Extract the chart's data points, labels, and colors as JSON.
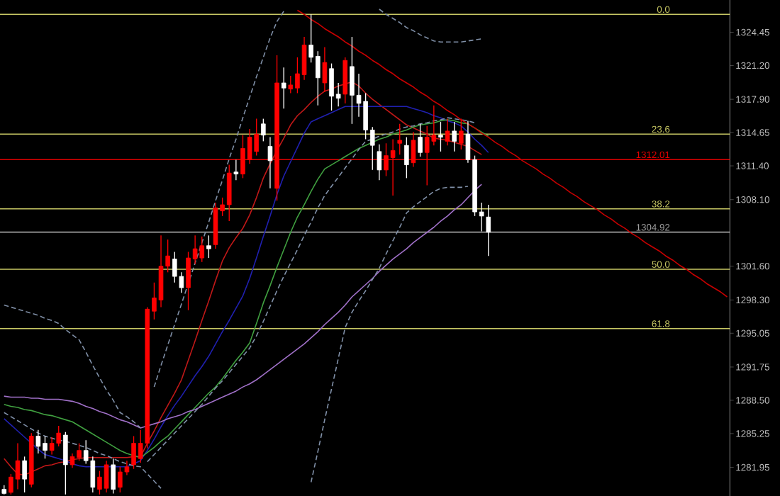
{
  "chart_data": {
    "type": "candlestick",
    "categories": [
      null,
      null,
      null,
      null,
      null,
      null,
      null,
      null,
      null,
      null,
      null,
      null,
      null,
      null,
      null,
      null,
      null,
      null,
      null,
      null,
      null,
      null,
      null,
      null,
      null,
      null,
      null,
      null,
      null,
      null,
      null,
      null,
      null,
      null,
      null,
      null,
      null,
      null,
      null,
      null,
      null,
      null,
      null,
      null,
      null,
      null,
      null,
      null,
      null,
      null,
      null,
      null,
      null,
      null,
      null,
      null,
      null,
      null,
      null,
      null,
      null,
      null,
      null,
      null,
      null,
      null,
      null,
      null,
      null,
      null,
      null,
      null,
      null,
      null,
      null,
      null,
      null,
      null,
      null,
      null,
      null,
      null,
      null,
      null,
      null,
      null,
      null,
      null,
      null,
      null,
      null,
      null,
      null,
      null,
      null,
      null,
      null,
      null,
      null,
      null,
      null,
      null,
      null,
      null,
      null,
      null,
      null
    ],
    "ohlc": [
      [
        1279.8,
        1280.2,
        1279.3,
        1279.4
      ],
      [
        1279.5,
        1281.3,
        1279.3,
        1281.0
      ],
      [
        1280.8,
        1284.3,
        1279.8,
        1282.6
      ],
      [
        1282.6,
        1283.0,
        1279.5,
        1280.8
      ],
      [
        1280.3,
        1285.3,
        1280.0,
        1285.0
      ],
      [
        1285.0,
        1285.6,
        1283.3,
        1284.0
      ],
      [
        1284.3,
        1285.0,
        1282.8,
        1283.6
      ],
      [
        1283.6,
        1284.9,
        1283.2,
        1284.3
      ],
      [
        1284.3,
        1286.0,
        1284.0,
        1285.3
      ],
      [
        1285.1,
        1285.4,
        1279.3,
        1282.2
      ],
      [
        1282.2,
        1283.3,
        1281.9,
        1283.0
      ],
      [
        1282.9,
        1284.3,
        1282.6,
        1283.6
      ],
      [
        1283.6,
        1284.6,
        1282.3,
        1282.6
      ],
      [
        1282.6,
        1283.0,
        1279.5,
        1280.0
      ],
      [
        1279.8,
        1281.6,
        1279.3,
        1281.0
      ],
      [
        1279.9,
        1282.6,
        1279.5,
        1282.2
      ],
      [
        1282.2,
        1282.8,
        1279.4,
        1279.8
      ],
      [
        1280.0,
        1282.0,
        1279.5,
        1281.5
      ],
      [
        1281.5,
        1282.6,
        1281.2,
        1282.0
      ],
      [
        1282.2,
        1285.0,
        1281.8,
        1284.3
      ],
      [
        1282.8,
        1285.6,
        1282.4,
        1284.3
      ],
      [
        1284.3,
        1297.6,
        1283.8,
        1297.4
      ],
      [
        1297.2,
        1300.0,
        1296.4,
        1298.5
      ],
      [
        1298.3,
        1304.6,
        1297.6,
        1301.6
      ],
      [
        1301.6,
        1304.2,
        1301.0,
        1302.6
      ],
      [
        1302.3,
        1303.0,
        1300.0,
        1300.6
      ],
      [
        1300.6,
        1301.0,
        1299.0,
        1299.5
      ],
      [
        1299.5,
        1303.0,
        1297.3,
        1302.4
      ],
      [
        1302.3,
        1304.6,
        1301.8,
        1303.3
      ],
      [
        1302.4,
        1304.5,
        1302.0,
        1303.6
      ],
      [
        1303.6,
        1304.6,
        1302.4,
        1303.3
      ],
      [
        1303.7,
        1307.8,
        1303.3,
        1307.3
      ],
      [
        1307.0,
        1308.3,
        1306.5,
        1307.6
      ],
      [
        1307.6,
        1311.5,
        1306.0,
        1310.7
      ],
      [
        1310.8,
        1312.0,
        1310.0,
        1310.6
      ],
      [
        1310.6,
        1314.4,
        1310.2,
        1313.1
      ],
      [
        1312.0,
        1315.0,
        1311.6,
        1314.2
      ],
      [
        1312.8,
        1316.0,
        1312.4,
        1314.5
      ],
      [
        1315.5,
        1316.0,
        1313.8,
        1314.4
      ],
      [
        1313.3,
        1314.2,
        1309.2,
        1311.9
      ],
      [
        1309.2,
        1322.2,
        1308.0,
        1319.5
      ],
      [
        1319.5,
        1321.0,
        1317.0,
        1319.0
      ],
      [
        1318.9,
        1320.2,
        1318.5,
        1319.3
      ],
      [
        1319.0,
        1322.0,
        1318.5,
        1320.4
      ],
      [
        1320.3,
        1324.0,
        1319.8,
        1323.2
      ],
      [
        1323.2,
        1326.2,
        1321.5,
        1322.0
      ],
      [
        1322.1,
        1322.6,
        1317.3,
        1320.0
      ],
      [
        1319.5,
        1323.0,
        1318.6,
        1321.5
      ],
      [
        1320.9,
        1321.4,
        1316.8,
        1318.2
      ],
      [
        1318.4,
        1319.5,
        1317.2,
        1318.0
      ],
      [
        1318.4,
        1322.0,
        1317.5,
        1321.7
      ],
      [
        1321.1,
        1324.0,
        1315.5,
        1318.3
      ],
      [
        1318.3,
        1320.4,
        1316.2,
        1317.5
      ],
      [
        1317.7,
        1318.5,
        1314.0,
        1314.9
      ],
      [
        1314.9,
        1315.2,
        1311.0,
        1313.4
      ],
      [
        1312.8,
        1313.5,
        1310.0,
        1311.0
      ],
      [
        1311.0,
        1313.6,
        1310.4,
        1312.4
      ],
      [
        1312.2,
        1314.0,
        1308.5,
        1312.9
      ],
      [
        1313.6,
        1315.5,
        1312.5,
        1313.9
      ],
      [
        1313.4,
        1314.2,
        1310.2,
        1311.5
      ],
      [
        1311.7,
        1314.7,
        1311.3,
        1313.9
      ],
      [
        1314.2,
        1315.5,
        1312.3,
        1312.7
      ],
      [
        1312.7,
        1315.3,
        1309.5,
        1314.2
      ],
      [
        1313.8,
        1317.3,
        1313.4,
        1314.4
      ],
      [
        1314.4,
        1315.7,
        1312.8,
        1314.2
      ],
      [
        1313.8,
        1316.0,
        1313.4,
        1314.8
      ],
      [
        1314.8,
        1315.7,
        1312.8,
        1313.8
      ],
      [
        1313.6,
        1316.0,
        1313.0,
        1314.8
      ],
      [
        1314.5,
        1315.8,
        1311.7,
        1312.0
      ],
      [
        1312.0,
        1312.4,
        1306.5,
        1306.9
      ],
      [
        1306.9,
        1307.8,
        1305.0,
        1306.5
      ],
      [
        1306.4,
        1307.6,
        1302.6,
        1304.92
      ],
      null,
      null,
      null,
      null,
      null,
      null,
      null,
      null,
      null,
      null,
      null,
      null,
      null,
      null,
      null,
      null,
      null,
      null,
      null,
      null,
      null,
      null,
      null,
      null,
      null,
      null,
      null,
      null,
      null,
      null,
      null,
      null,
      null,
      null,
      null
    ],
    "colors": [
      "#ffffff",
      "#ff0000",
      "#ff0000",
      "#ffffff",
      "#ff0000",
      "#ffffff",
      "#ffffff",
      "#ff0000",
      "#ff0000",
      "#ffffff",
      "#ff0000",
      "#ff0000",
      "#ffffff",
      "#ffffff",
      "#ff0000",
      "#ff0000",
      "#ffffff",
      "#ff0000",
      "#ff0000",
      "#ff0000",
      "#ff0000",
      "#ff0000",
      "#ff0000",
      "#ff0000",
      "#ff0000",
      "#ffffff",
      "#ffffff",
      "#ff0000",
      "#ff0000",
      "#ff0000",
      "#ffffff",
      "#ff0000",
      "#ff0000",
      "#ff0000",
      "#ffffff",
      "#ff0000",
      "#ff0000",
      "#ff0000",
      "#ffffff",
      "#ffffff",
      "#ff0000",
      "#ffffff",
      "#ff0000",
      "#ff0000",
      "#ff0000",
      "#ffffff",
      "#ffffff",
      "#ff0000",
      "#ffffff",
      "#ffffff",
      "#ff0000",
      "#ffffff",
      "#ffffff",
      "#ffffff",
      "#ffffff",
      "#ffffff",
      "#ff0000",
      "#ff0000",
      "#ff0000",
      "#ffffff",
      "#ff0000",
      "#ffffff",
      "#ff0000",
      "#ff0000",
      "#ffffff",
      "#ff0000",
      "#ffffff",
      "#ff0000",
      "#ffffff",
      "#ffffff",
      "#ffffff",
      "#ffffff",
      null,
      null,
      null,
      null,
      null,
      null,
      null,
      null,
      null,
      null,
      null,
      null,
      null,
      null,
      null,
      null,
      null,
      null,
      null,
      null,
      null,
      null,
      null,
      null,
      null,
      null,
      null,
      null,
      null,
      null,
      null,
      null,
      null,
      null,
      null
    ],
    "series": [
      {
        "type": "line",
        "color": "#c01818",
        "line_style": "solid",
        "values": [
          1282.8,
          1282.0,
          1281.3,
          1281.2,
          1281.5,
          1281.8,
          1282.1,
          1282.2,
          1282.4,
          1282.5,
          1282.7,
          1282.8,
          1282.9,
          1282.9,
          1282.9,
          1282.9,
          1282.9,
          1282.9,
          1282.9,
          1283.0,
          1283.0,
          1284.3,
          1285.5,
          1286.8,
          1288.0,
          1289.2,
          1290.5,
          1292.4,
          1294.3,
          1296.3,
          1298.2,
          1300.2,
          1302.1,
          1303.4,
          1304.4,
          1305.3,
          1306.6,
          1308.3,
          1310.2,
          1311.6,
          1312.9,
          1314.1,
          1315.4,
          1316.3,
          1316.9,
          1317.6,
          1318.2,
          1318.7,
          1318.9,
          1319.2,
          1319.4,
          1319.6,
          1319.2,
          1318.5,
          1317.9,
          1317.4,
          1316.9,
          1316.4,
          1315.9,
          1315.4,
          1315.1,
          1314.8,
          1314.5,
          1314.1,
          1314.0,
          1313.9,
          1313.7,
          1313.5,
          1313.3,
          1312.9,
          1312.5,
          null,
          null,
          null,
          null,
          null,
          null,
          null,
          null,
          null,
          null,
          null,
          null,
          null,
          null,
          null,
          null,
          null,
          null,
          null,
          null,
          null,
          null,
          null,
          null,
          null,
          null,
          null,
          null,
          null,
          null,
          null,
          null,
          null,
          null,
          null,
          null
        ]
      },
      {
        "type": "line",
        "color": "#2020b0",
        "line_style": "solid",
        "values": [
          1286.7,
          1286.1,
          1285.5,
          1284.9,
          1284.3,
          1283.7,
          1283.2,
          1283.0,
          1282.8,
          1282.6,
          1282.3,
          1282.1,
          1282.0,
          1282.0,
          1282.0,
          1282.0,
          1282.0,
          1282.0,
          1282.0,
          1282.3,
          1282.6,
          1283.6,
          1284.7,
          1285.9,
          1287.0,
          1288.0,
          1288.9,
          1289.9,
          1290.9,
          1291.8,
          1292.8,
          1294.0,
          1295.2,
          1296.3,
          1297.5,
          1298.7,
          1300.4,
          1302.4,
          1304.5,
          1306.5,
          1308.6,
          1310.4,
          1311.8,
          1313.2,
          1314.6,
          1315.7,
          1316.0,
          1316.3,
          1316.6,
          1316.9,
          1317.2,
          1317.2,
          1317.2,
          1317.2,
          1317.2,
          1317.2,
          1317.2,
          1317.2,
          1317.2,
          1317.2,
          1317.0,
          1316.8,
          1316.6,
          1316.3,
          1316.1,
          1315.8,
          1315.6,
          1315.3,
          1314.7,
          1314.0,
          1313.4,
          1312.7,
          null,
          null,
          null,
          null,
          null,
          null,
          null,
          null,
          null,
          null,
          null,
          null,
          null,
          null,
          null,
          null,
          null,
          null,
          null,
          null,
          null,
          null,
          null,
          null,
          null,
          null,
          null,
          null,
          null,
          null,
          null,
          null,
          null,
          null,
          null
        ]
      },
      {
        "type": "line",
        "color": "#40a040",
        "line_style": "solid",
        "values": [
          1288.1,
          1287.9,
          1287.8,
          1287.6,
          1287.5,
          1287.3,
          1287.1,
          1287.0,
          1286.8,
          1286.6,
          1286.4,
          1286.0,
          1285.6,
          1285.2,
          1284.8,
          1284.4,
          1284.0,
          1283.6,
          1283.3,
          1283.1,
          1282.9,
          1283.4,
          1283.9,
          1284.5,
          1285.0,
          1285.7,
          1286.4,
          1287.1,
          1287.8,
          1288.5,
          1289.2,
          1289.8,
          1290.6,
          1291.5,
          1292.4,
          1293.2,
          1294.1,
          1296.0,
          1298.0,
          1299.7,
          1301.5,
          1303.2,
          1304.9,
          1306.4,
          1307.6,
          1308.9,
          1310.1,
          1311.1,
          1311.5,
          1311.9,
          1312.3,
          1312.7,
          1313.1,
          1313.4,
          1313.7,
          1314.0,
          1314.2,
          1314.5,
          1314.7,
          1314.9,
          1315.2,
          1315.4,
          1315.5,
          1315.6,
          1315.8,
          1315.9,
          1315.8,
          1315.6,
          1315.5,
          1315.1,
          1314.7,
          1314.3,
          null,
          null,
          null,
          null,
          null,
          null,
          null,
          null,
          null,
          null,
          null,
          null,
          null,
          null,
          null,
          null,
          null,
          null,
          null,
          null,
          null,
          null,
          null,
          null,
          null,
          null,
          null,
          null,
          null,
          null,
          null,
          null,
          null,
          null,
          null
        ]
      },
      {
        "type": "line",
        "color": "#a070c8",
        "line_style": "solid",
        "values": [
          1288.9,
          1288.8,
          1288.8,
          1288.8,
          1288.7,
          1288.7,
          1288.6,
          1288.6,
          1288.6,
          1288.5,
          1288.4,
          1288.2,
          1287.9,
          1287.7,
          1287.4,
          1287.2,
          1286.9,
          1286.6,
          1286.4,
          1286.1,
          1285.8,
          1286.0,
          1286.2,
          1286.4,
          1286.7,
          1286.9,
          1287.1,
          1287.4,
          1287.6,
          1287.9,
          1288.2,
          1288.5,
          1288.8,
          1289.1,
          1289.4,
          1289.8,
          1290.1,
          1290.5,
          1291.0,
          1291.5,
          1292.0,
          1292.5,
          1293.0,
          1293.5,
          1294.0,
          1294.6,
          1295.2,
          1295.9,
          1296.5,
          1297.1,
          1297.8,
          1298.6,
          1299.2,
          1299.8,
          1300.4,
          1301.1,
          1301.7,
          1302.3,
          1302.8,
          1303.3,
          1303.9,
          1304.4,
          1304.9,
          1305.4,
          1306.0,
          1306.5,
          1307.1,
          1307.6,
          1308.3,
          1309.0,
          1309.6,
          null,
          null,
          null,
          null,
          null,
          null,
          null,
          null,
          null,
          null,
          null,
          null,
          null,
          null,
          null,
          null,
          null,
          null,
          null,
          null,
          null,
          null,
          null,
          null,
          null,
          null,
          null,
          null,
          null,
          null,
          null,
          null,
          null,
          null,
          null,
          null
        ]
      },
      {
        "type": "line",
        "color": "#8090a8",
        "line_style": "dashed",
        "values": [
          1297.8,
          1297.6,
          1297.4,
          1297.2,
          1297.0,
          1296.8,
          1296.5,
          1296.3,
          1296.0,
          1295.4,
          1294.9,
          1294.4,
          1293.2,
          1291.9,
          1290.7,
          1289.5,
          1288.5,
          1287.3,
          1286.9,
          1286.4,
          1285.8,
          null,
          1289.8,
          1291.9,
          1293.9,
          1295.9,
          1297.9,
          1299.9,
          1301.9,
          1303.9,
          1305.9,
          1308.0,
          1310.0,
          1312.1,
          1314.0,
          1316.1,
          1318.1,
          1320.1,
          1322.0,
          1323.9,
          1325.5,
          1326.5,
          null,
          null,
          null,
          null,
          null,
          null,
          null,
          null,
          null,
          null,
          null,
          null,
          null,
          1326.7,
          1326.2,
          1325.8,
          1325.4,
          1324.9,
          1324.6,
          1324.2,
          1323.9,
          1323.6,
          1323.5,
          1323.5,
          1323.5,
          1323.5,
          1323.6,
          1323.7,
          1323.8,
          null,
          null,
          null,
          null,
          null,
          null,
          null,
          null,
          null,
          null,
          null,
          null,
          null,
          null,
          null,
          null,
          null,
          null,
          null,
          null,
          null,
          null,
          null,
          null,
          null,
          null,
          null,
          null,
          null,
          null,
          null,
          null,
          null,
          null,
          null,
          null
        ]
      },
      {
        "type": "line",
        "color": "#8090a8",
        "line_style": "dashed",
        "values": [
          1287.3,
          1286.9,
          1286.5,
          1286.1,
          1285.7,
          1285.3,
          1285.0,
          1284.8,
          1284.6,
          1284.5,
          1284.3,
          1284.1,
          1283.9,
          1283.6,
          1283.3,
          1283.1,
          1282.8,
          1282.5,
          1282.3,
          1282.1,
          1282.0,
          1281.3,
          1280.6,
          1279.9,
          null,
          null,
          null,
          null,
          null,
          null,
          null,
          null,
          null,
          null,
          null,
          null,
          null,
          null,
          null,
          null,
          null,
          null,
          null,
          null,
          null,
          1280.5,
          1283.5,
          1286.6,
          1289.6,
          1292.6,
          1295.6,
          1297.1,
          1298.2,
          1299.2,
          1300.3,
          1301.4,
          1302.8,
          1304.1,
          1305.4,
          1306.8,
          1307.4,
          1307.9,
          1308.4,
          1308.9,
          1309.2,
          1309.3,
          1309.3,
          1309.3,
          1309.4,
          null,
          null,
          null,
          null,
          null,
          null,
          null,
          null,
          null,
          null,
          null,
          null,
          null,
          null,
          null,
          null,
          null,
          null,
          null,
          null,
          null,
          null,
          null,
          null,
          null,
          null,
          null,
          null,
          null,
          null,
          null,
          null,
          null,
          null,
          null,
          null,
          null,
          null
        ]
      },
      {
        "type": "line",
        "color": "#8090a8",
        "line_style": "dashed",
        "values": [
          null,
          null,
          null,
          null,
          null,
          null,
          null,
          null,
          null,
          null,
          null,
          null,
          null,
          null,
          null,
          null,
          null,
          null,
          null,
          null,
          null,
          1282.5,
          1283.2,
          1283.9,
          1284.6,
          1285.3,
          1286.0,
          1286.7,
          1287.4,
          1288.1,
          1288.9,
          1289.7,
          1290.4,
          1291.2,
          1292.0,
          1292.8,
          1293.6,
          1294.8,
          1296.2,
          1297.7,
          1299.2,
          1300.6,
          1301.9,
          1303.2,
          1304.6,
          1305.9,
          1307.3,
          1308.5,
          1309.4,
          1310.3,
          1311.2,
          1312.1,
          1313.0,
          1313.8,
          1314.0,
          1314.3,
          1314.5,
          1314.7,
          1315.0,
          1315.2,
          1315.3,
          1315.5,
          1315.6,
          1315.8,
          1315.9,
          1316.1,
          1316.0,
          1315.9,
          1315.8,
          1315.6,
          null,
          null,
          null,
          null,
          null,
          null,
          null,
          null,
          null,
          null,
          null,
          null,
          null,
          null,
          null,
          null,
          null,
          null,
          null,
          null,
          null,
          null,
          null,
          null,
          null,
          null,
          null,
          null,
          null,
          null,
          null,
          null,
          null,
          null,
          null,
          null,
          null
        ]
      },
      {
        "type": "line",
        "color": "#c80000",
        "line_style": "solid",
        "values": [
          null,
          null,
          null,
          null,
          null,
          null,
          null,
          null,
          null,
          null,
          null,
          null,
          null,
          null,
          null,
          null,
          null,
          null,
          null,
          null,
          null,
          null,
          null,
          null,
          null,
          null,
          null,
          null,
          null,
          null,
          null,
          null,
          null,
          null,
          null,
          null,
          null,
          null,
          null,
          null,
          null,
          null,
          null,
          1326.6,
          1326.2,
          1325.7,
          1325.3,
          1324.8,
          1324.4,
          1324.0,
          1323.5,
          1323.1,
          1322.6,
          1322.2,
          1321.7,
          1321.3,
          1320.8,
          1320.4,
          1319.9,
          1319.5,
          1319.1,
          1318.6,
          1318.2,
          1317.7,
          1317.3,
          1316.8,
          1316.4,
          1315.9,
          1315.5,
          1315.1,
          1314.6,
          1314.2,
          1313.7,
          1313.3,
          1312.8,
          1312.4,
          1311.9,
          1311.5,
          1311.1,
          1310.6,
          1310.2,
          1309.7,
          1309.3,
          1308.8,
          1308.4,
          1307.9,
          1307.5,
          1307.1,
          1306.6,
          1306.2,
          1305.7,
          1305.3,
          1304.8,
          1304.4,
          1303.9,
          1303.5,
          1303.1,
          1302.6,
          1302.2,
          1301.7,
          1301.3,
          1300.8,
          1300.4,
          1299.9,
          1299.5,
          1299.1,
          1298.6
        ]
      }
    ],
    "ref_lines": [
      {
        "axis": "y",
        "value": 1326.2,
        "color": "#c8c864"
      },
      {
        "axis": "y",
        "value": 1314.5,
        "color": "#c8c864"
      },
      {
        "axis": "y",
        "value": 1307.2,
        "color": "#c8c864"
      },
      {
        "axis": "y",
        "value": 1301.3,
        "color": "#c8c864"
      },
      {
        "axis": "y",
        "value": 1295.5,
        "color": "#c8c864"
      },
      {
        "axis": "y",
        "value": 1312.01,
        "label": "1312.01",
        "color": "#e00000"
      },
      {
        "axis": "y",
        "value": 1304.92,
        "label": "1304.92",
        "color": "#a0a0a0"
      }
    ],
    "annotations": [
      {
        "text": "0.0",
        "y": 1326.2
      },
      {
        "text": "23.6",
        "y": 1314.5
      },
      {
        "text": "38.2",
        "y": 1307.2
      },
      {
        "text": "50.0",
        "y": 1301.3
      },
      {
        "text": "61.8",
        "y": 1295.5
      }
    ],
    "ylim": [
      1279.15,
      1327.6
    ],
    "yticks": [
      1324.45,
      {
        "value": 1321.2,
        "label": "1321.20"
      },
      {
        "value": 1317.9,
        "label": "1317.90"
      },
      1314.65,
      {
        "value": 1311.4,
        "label": "1311.40"
      },
      {
        "value": 1308.1,
        "label": "1308.10"
      },
      {
        "value": 1301.6,
        "label": "1301.60"
      },
      {
        "value": 1298.3,
        "label": "1298.30"
      },
      1295.05,
      1291.75,
      {
        "value": 1288.5,
        "label": "1288.50"
      },
      1285.25,
      1281.95
    ],
    "tick_labels": "y"
  }
}
